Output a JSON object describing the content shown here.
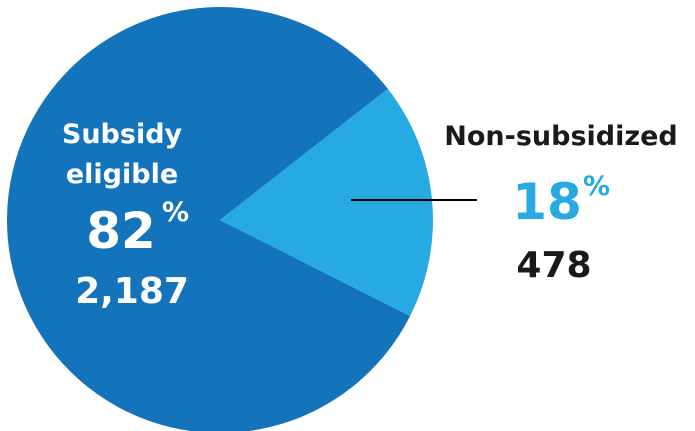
{
  "chart_data": {
    "type": "pie",
    "slices": [
      {
        "label_lines": [
          "Subsidy",
          "eligible"
        ],
        "percent": 82,
        "percent_sign": "%",
        "count": 2187,
        "count_text": "2,187",
        "color": "#1373bb",
        "label_color": "#ffffff",
        "percent_color": "#ffffff"
      },
      {
        "label_lines": [
          "Non-subsidized"
        ],
        "percent": 18,
        "percent_sign": "%",
        "count": 478,
        "count_text": "478",
        "color": "#27a9e1",
        "label_color": "#1a1a1a",
        "percent_color": "#27a9e1"
      }
    ],
    "leader_line_color": "#000000"
  }
}
